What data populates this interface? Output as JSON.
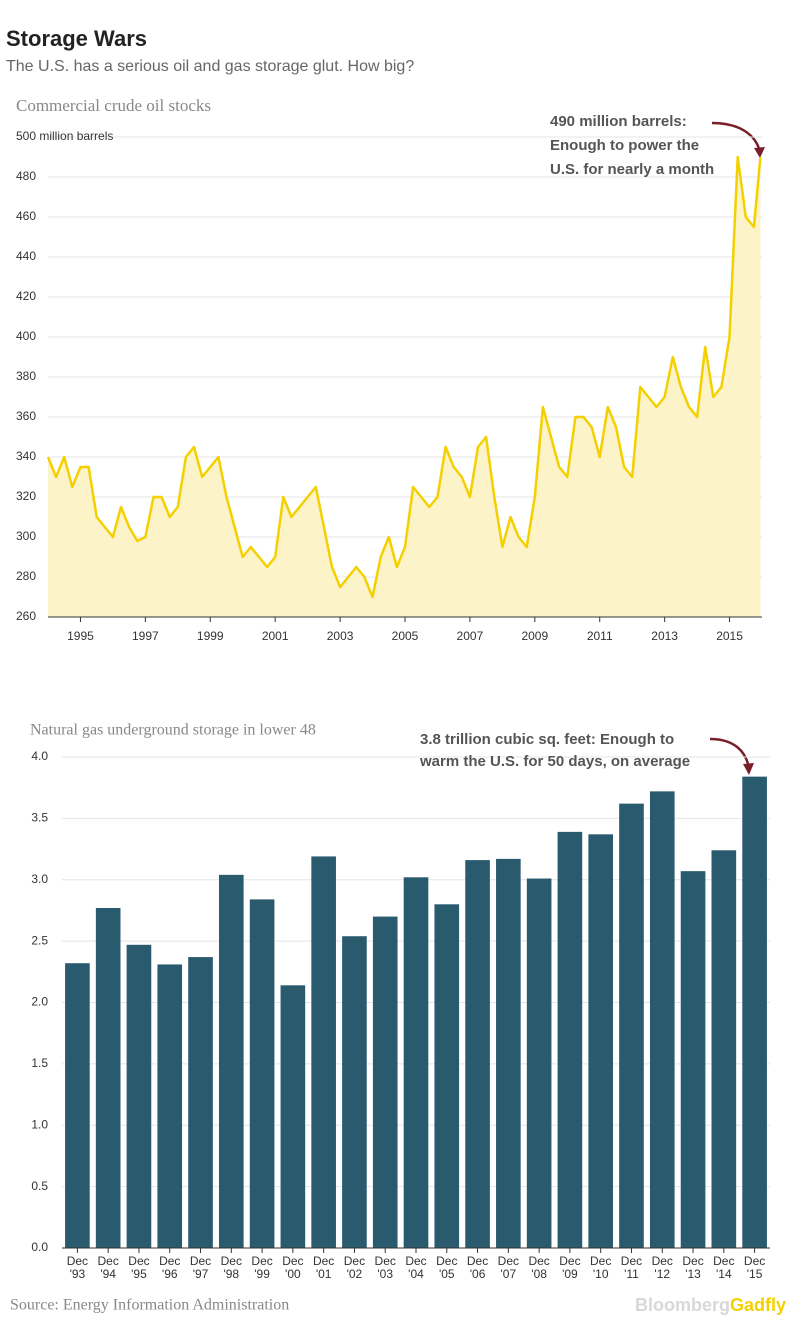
{
  "title": "Storage Wars",
  "subtitle": "The U.S. has a serious oil and gas storage glut. How big?",
  "source": "Source: Energy Information Administration",
  "brand": [
    "Bloomberg",
    "Gadfly"
  ],
  "chart_data": [
    {
      "type": "line",
      "title": "Commercial crude oil stocks",
      "annotation": [
        "490 million barrels:",
        "Enough to power the",
        "U.S. for nearly a month"
      ],
      "color": "#f5d000",
      "fill": "#fdf3c8",
      "x": [
        1994.0,
        1994.25,
        1994.5,
        1994.75,
        1995.0,
        1995.25,
        1995.5,
        1995.75,
        1996.0,
        1996.25,
        1996.5,
        1996.75,
        1997.0,
        1997.25,
        1997.5,
        1997.75,
        1998.0,
        1998.25,
        1998.5,
        1998.75,
        1999.0,
        1999.25,
        1999.5,
        1999.75,
        2000.0,
        2000.25,
        2000.5,
        2000.75,
        2001.0,
        2001.25,
        2001.5,
        2001.75,
        2002.0,
        2002.25,
        2002.5,
        2002.75,
        2003.0,
        2003.25,
        2003.5,
        2003.75,
        2004.0,
        2004.25,
        2004.5,
        2004.75,
        2005.0,
        2005.25,
        2005.5,
        2005.75,
        2006.0,
        2006.25,
        2006.5,
        2006.75,
        2007.0,
        2007.25,
        2007.5,
        2007.75,
        2008.0,
        2008.25,
        2008.5,
        2008.75,
        2009.0,
        2009.25,
        2009.5,
        2009.75,
        2010.0,
        2010.25,
        2010.5,
        2010.75,
        2011.0,
        2011.25,
        2011.5,
        2011.75,
        2012.0,
        2012.25,
        2012.5,
        2012.75,
        2013.0,
        2013.25,
        2013.5,
        2013.75,
        2014.0,
        2014.25,
        2014.5,
        2014.75,
        2015.0,
        2015.25,
        2015.5,
        2015.75,
        2015.95
      ],
      "values": [
        340,
        330,
        340,
        325,
        335,
        335,
        310,
        305,
        300,
        315,
        305,
        298,
        300,
        320,
        320,
        310,
        315,
        340,
        345,
        330,
        335,
        340,
        320,
        305,
        290,
        295,
        290,
        285,
        290,
        320,
        310,
        315,
        320,
        325,
        305,
        285,
        275,
        280,
        285,
        280,
        270,
        290,
        300,
        285,
        295,
        325,
        320,
        315,
        320,
        345,
        335,
        330,
        320,
        345,
        350,
        320,
        295,
        310,
        300,
        295,
        320,
        365,
        350,
        335,
        330,
        360,
        360,
        355,
        340,
        365,
        355,
        335,
        330,
        375,
        370,
        365,
        370,
        390,
        375,
        365,
        360,
        395,
        370,
        375,
        400,
        490,
        460,
        455,
        490
      ],
      "xlim": [
        1994,
        2016
      ],
      "xticks": [
        1995,
        1997,
        1999,
        2001,
        2003,
        2005,
        2007,
        2009,
        2011,
        2013,
        2015
      ],
      "ylim": [
        260,
        500
      ],
      "yticks": [
        260,
        280,
        300,
        320,
        340,
        360,
        380,
        400,
        420,
        440,
        460,
        480,
        {
          "value": 500,
          "label": "500 million barrels"
        }
      ],
      "grid": true
    },
    {
      "type": "bar",
      "title": "Natural gas underground storage in lower 48",
      "annotation": [
        "3.8  trillion cubic sq. feet:  Enough to",
        "warm the U.S. for 50 days, on average"
      ],
      "color": "#2a5a6e",
      "categories": [
        "Dec '93",
        "Dec '94",
        "Dec '95",
        "Dec '96",
        "Dec '97",
        "Dec '98",
        "Dec '99",
        "Dec '00",
        "Dec '01",
        "Dec '02",
        "Dec '03",
        "Dec '04",
        "Dec '05",
        "Dec '06",
        "Dec '07",
        "Dec '08",
        "Dec '09",
        "Dec '10",
        "Dec '11",
        "Dec '12",
        "Dec '13",
        "Dec '14",
        "Dec '15"
      ],
      "values": [
        2.32,
        2.77,
        2.47,
        2.31,
        2.37,
        3.04,
        2.84,
        2.14,
        3.19,
        2.54,
        2.7,
        3.02,
        2.8,
        3.16,
        3.17,
        3.01,
        3.39,
        3.37,
        3.62,
        3.72,
        3.07,
        3.24,
        3.84
      ],
      "ylim": [
        0,
        4
      ],
      "yticks": [
        {
          "value": 0,
          "label": "0.0"
        },
        0.5,
        {
          "value": 1,
          "label": "1.0"
        },
        1.5,
        {
          "value": 2,
          "label": "2.0"
        },
        2.5,
        {
          "value": 3,
          "label": "3.0"
        },
        3.5,
        {
          "value": 4,
          "label": "4.0"
        }
      ],
      "grid": true
    }
  ]
}
